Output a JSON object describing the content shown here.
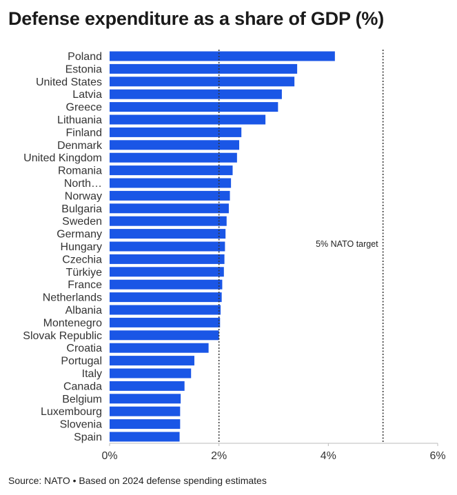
{
  "title": "Defense expenditure as a share of GDP (%)",
  "source": "Source: NATO • Based on 2024 defense spending estimates",
  "colors": {
    "bar": "#1a56e6",
    "axis": "#bbbbbb",
    "refline": "#333333",
    "text": "#333333"
  },
  "chart_data": {
    "type": "bar",
    "orientation": "horizontal",
    "title": "Defense expenditure as a share of GDP (%)",
    "xlabel": "",
    "ylabel": "",
    "xlim": [
      0,
      6
    ],
    "xticks": [
      0,
      2,
      4,
      6
    ],
    "xtick_labels": [
      "0%",
      "2%",
      "4%",
      "6%"
    ],
    "categories": [
      "Poland",
      "Estonia",
      "United States",
      "Latvia",
      "Greece",
      "Lithuania",
      "Finland",
      "Denmark",
      "United Kingdom",
      "Romania",
      "North…",
      "Norway",
      "Bulgaria",
      "Sweden",
      "Germany",
      "Hungary",
      "Czechia",
      "Türkiye",
      "France",
      "Netherlands",
      "Albania",
      "Montenegro",
      "Slovak Republic",
      "Croatia",
      "Portugal",
      "Italy",
      "Canada",
      "Belgium",
      "Luxembourg",
      "Slovenia",
      "Spain"
    ],
    "values": [
      4.12,
      3.43,
      3.38,
      3.15,
      3.08,
      2.85,
      2.41,
      2.37,
      2.33,
      2.25,
      2.22,
      2.2,
      2.18,
      2.14,
      2.12,
      2.11,
      2.1,
      2.09,
      2.06,
      2.05,
      2.03,
      2.02,
      2.0,
      1.81,
      1.55,
      1.49,
      1.37,
      1.3,
      1.29,
      1.29,
      1.28
    ],
    "reference_lines": [
      {
        "value": 2,
        "label": ""
      },
      {
        "value": 5,
        "label": "5% NATO target"
      }
    ],
    "grid": false
  }
}
